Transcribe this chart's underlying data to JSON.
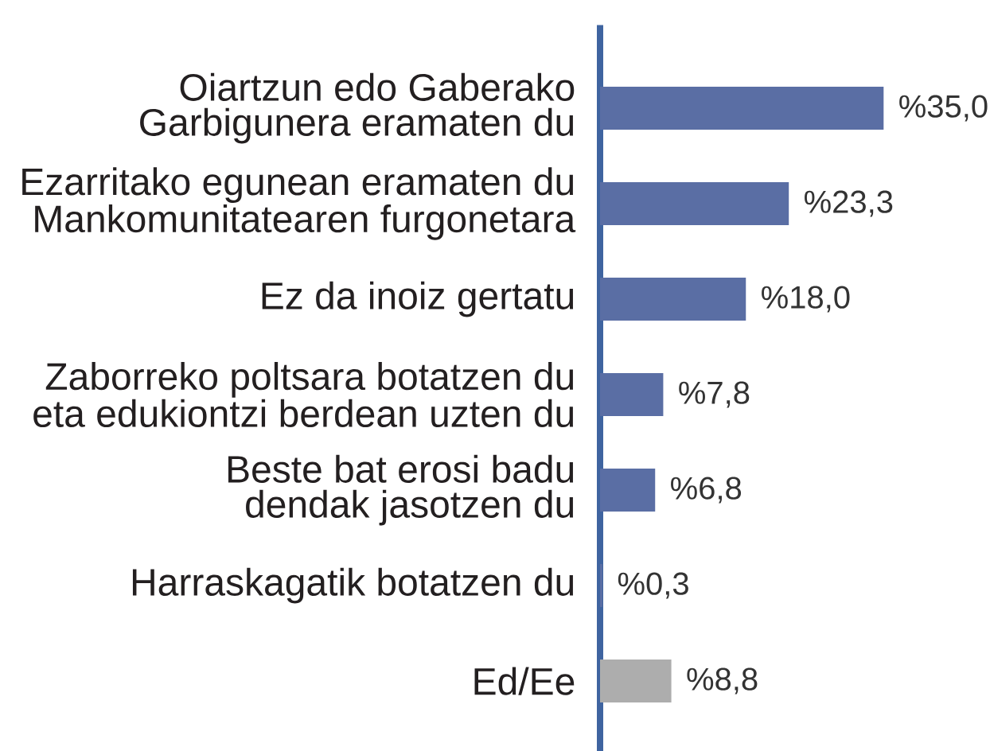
{
  "chart_data": {
    "type": "bar",
    "orientation": "horizontal",
    "categories": [
      "Oiartzun edo Gaberako Garbigunera eramaten du",
      "Ezarritako egunean eramaten du Mankomunitatearen furgonetara",
      "Ez da inoiz gertatu",
      "Zaborreko poltsara botatzen du eta edukiontzi berdean uzten du",
      "Beste bat erosi badu dendak jasotzen du",
      "Harraskagatik botatzen du",
      "Ed/Ee"
    ],
    "values": [
      35.0,
      23.3,
      18.0,
      7.8,
      6.8,
      0.3,
      8.8
    ],
    "colors": [
      "#5a6ea4",
      "#5a6ea4",
      "#5a6ea4",
      "#5a6ea4",
      "#5a6ea4",
      "#5a6ea4",
      "#adadad"
    ],
    "value_labels": [
      "%35,0",
      "%23,3",
      "%18,0",
      "%7,8",
      "%6,8",
      "%0,3",
      "%8,8"
    ],
    "tick_labels": "y"
  }
}
